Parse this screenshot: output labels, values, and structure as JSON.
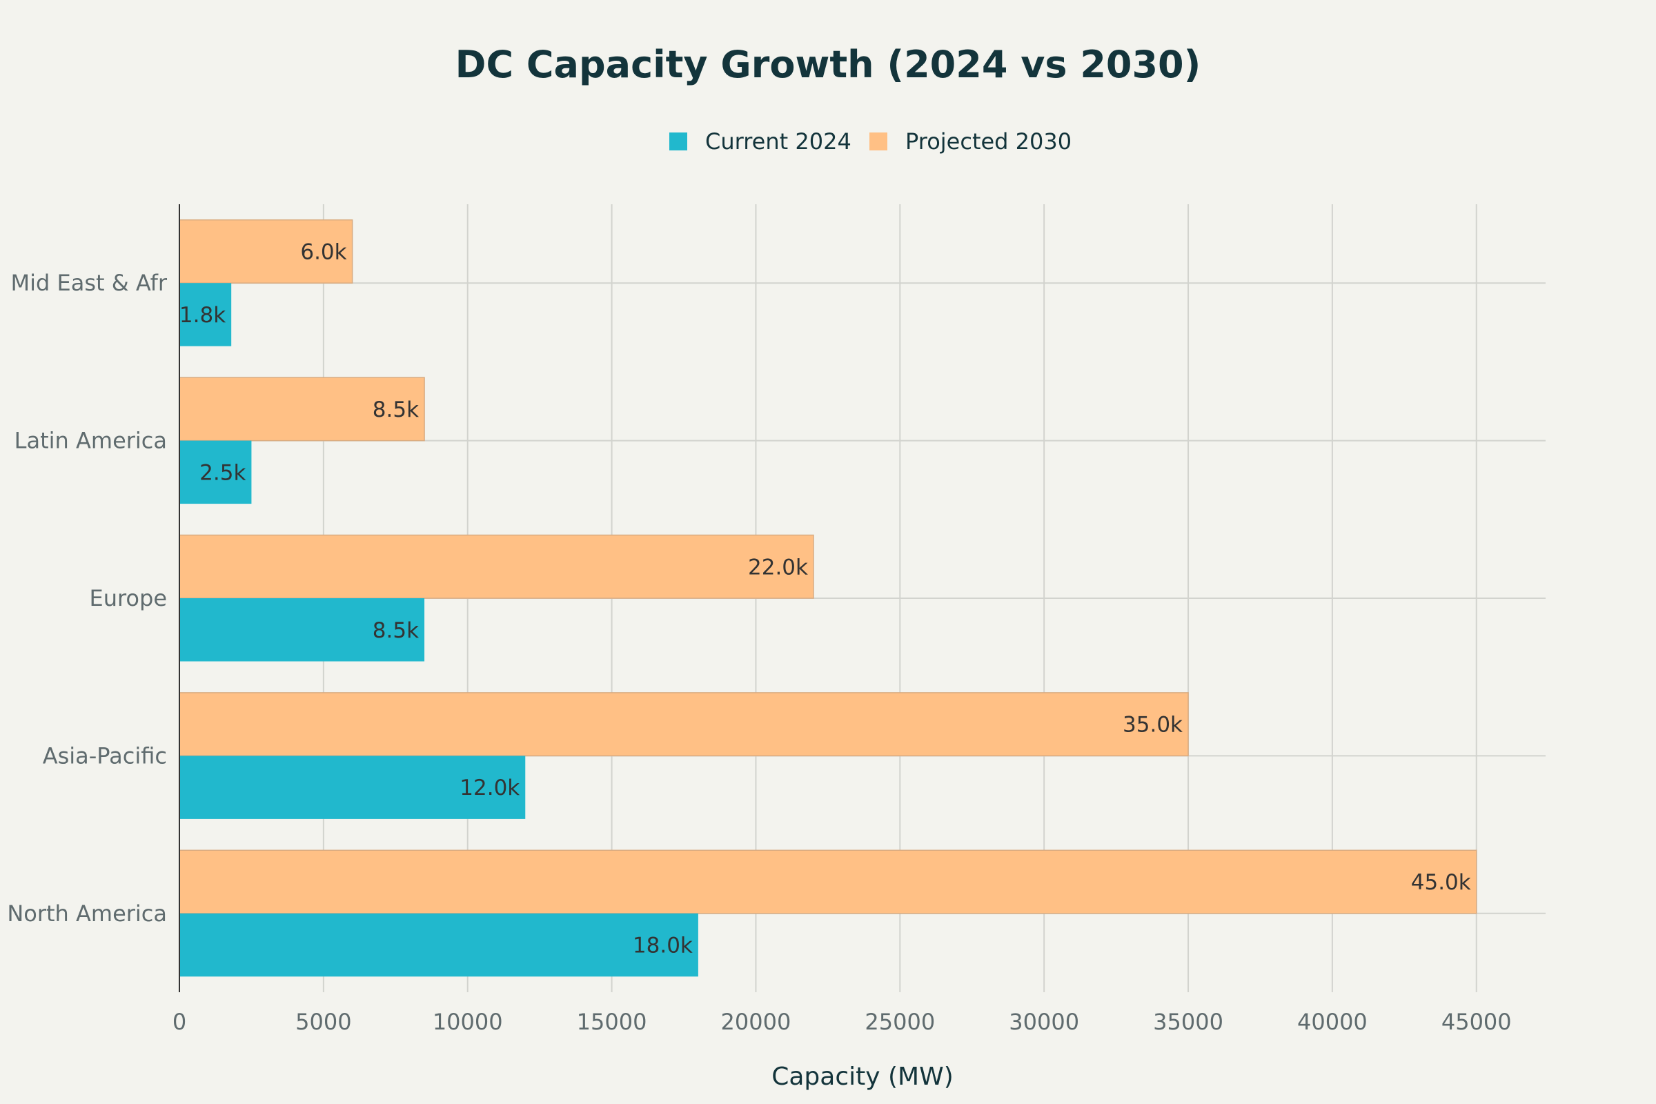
{
  "chart_data": {
    "type": "bar",
    "orientation": "horizontal",
    "title": "DC Capacity Growth (2024 vs 2030)",
    "xlabel": "Capacity (MW)",
    "ylabel": "",
    "categories": [
      "North America",
      "Asia-Pacific",
      "Europe",
      "Latin America",
      "Mid East & Afr"
    ],
    "series": [
      {
        "name": "Current 2024",
        "color": "#21b8cd",
        "values": [
          18000,
          12000,
          8500,
          2500,
          1800
        ],
        "labels": [
          "18.0k",
          "12.0k",
          "8.5k",
          "2.5k",
          "1.8k"
        ]
      },
      {
        "name": "Projected 2030",
        "color": "#ffc085",
        "values": [
          45000,
          35000,
          22000,
          8500,
          6000
        ],
        "labels": [
          "45.0k",
          "35.0k",
          "22.0k",
          "8.5k",
          "6.0k"
        ]
      }
    ],
    "xlim": [
      0,
      47400
    ],
    "xticks": [
      0,
      5000,
      10000,
      15000,
      20000,
      25000,
      30000,
      35000,
      40000,
      45000
    ],
    "xtick_labels": [
      "0",
      "5000",
      "10000",
      "15000",
      "20000",
      "25000",
      "30000",
      "35000",
      "40000",
      "45000"
    ],
    "grid": true,
    "legend_position": "top-center",
    "background": "#f3f3ee"
  }
}
